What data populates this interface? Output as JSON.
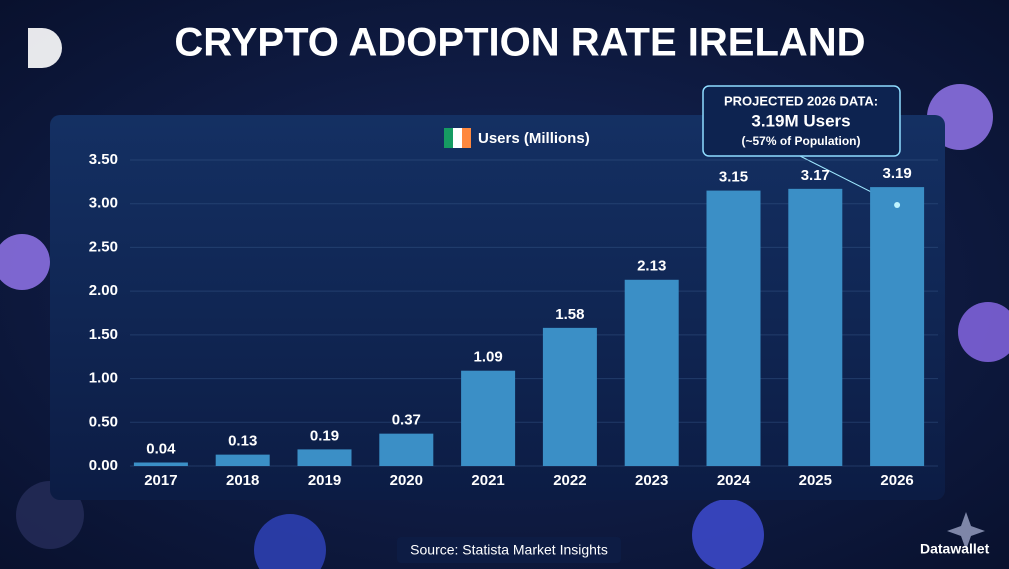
{
  "chart_data": {
    "type": "bar",
    "title": "CRYPTO ADOPTION RATE IRELAND",
    "categories": [
      "2017",
      "2018",
      "2019",
      "2020",
      "2021",
      "2022",
      "2023",
      "2024",
      "2025",
      "2026"
    ],
    "series": [
      {
        "name": "Users (Millions)",
        "color": "#3b8fc6",
        "values": [
          0.04,
          0.13,
          0.19,
          0.37,
          1.09,
          1.58,
          2.13,
          3.15,
          3.17,
          3.19
        ]
      }
    ],
    "ylim": [
      0,
      3.5
    ],
    "yticks": [
      {
        "value": 0,
        "label": "0.00"
      },
      {
        "value": 0.5,
        "label": "0.50"
      },
      {
        "value": 1,
        "label": "1.00"
      },
      {
        "value": 1.5,
        "label": "1.50"
      },
      {
        "value": 2,
        "label": "2.00"
      },
      {
        "value": 2.5,
        "label": "2.50"
      },
      {
        "value": 3,
        "label": "3.00"
      },
      {
        "value": 3.5,
        "label": "3.50"
      }
    ],
    "grid": true,
    "annotation": [
      "PROJECTED 2026 DATA:",
      "3.19M Users",
      "(~57% of Population)"
    ],
    "source": "Source: Statista Market Insights",
    "brand": "Datawallet"
  }
}
